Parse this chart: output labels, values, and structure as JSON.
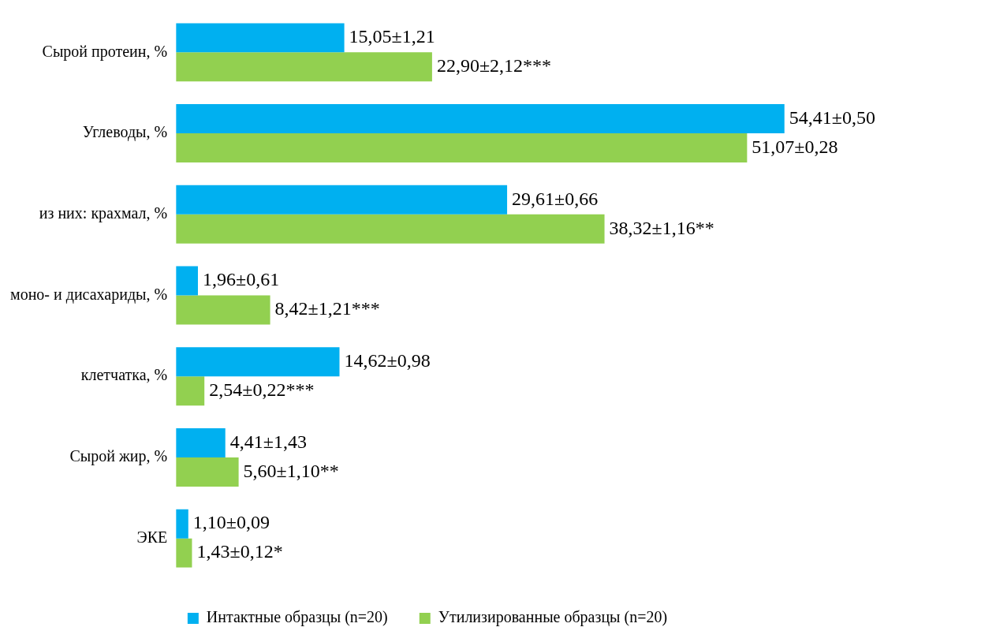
{
  "chart_data": {
    "type": "bar",
    "orientation": "horizontal",
    "legend": "bottom",
    "categories": [
      "Сырой протеин, %",
      "Углеводы, %",
      "из них: крахмал, %",
      "моно- и дисахариды, %",
      "клетчатка, %",
      "Сырой жир, %",
      "ЭКЕ"
    ],
    "series": [
      {
        "name": "Интактные образцы (n=20)",
        "color": "#00b0f0",
        "values": [
          15.05,
          54.41,
          29.61,
          1.96,
          14.62,
          4.41,
          1.1
        ],
        "value_labels": [
          "15,05±1,21",
          "54,41±0,50",
          "29,61±0,66",
          "1,96±0,61",
          "14,62±0,98",
          "4,41±1,43",
          "1,10±0,09"
        ]
      },
      {
        "name": "Утилизированные образцы (n=20)",
        "color": "#92d050",
        "values": [
          22.9,
          51.07,
          38.32,
          8.42,
          2.54,
          5.6,
          1.43
        ],
        "value_labels": [
          "22,90±2,12***",
          "51,07±0,28",
          "38,32±1,16**",
          "8,42±1,21***",
          "2,54±0,22***",
          "5,60±1,10**",
          "1,43±0,12*"
        ]
      }
    ]
  }
}
